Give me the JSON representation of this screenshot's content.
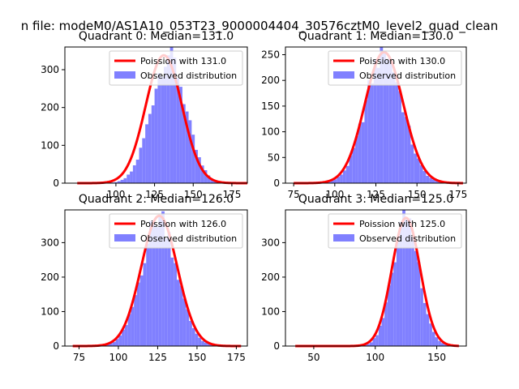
{
  "suptitle": "n file: modeM0/AS1A10_053T23_9000004404_30576cztM0_level2_quad_clean",
  "colors": {
    "curve": "#ff0000",
    "hist": "#8080ff",
    "axis": "#000000",
    "legend_border": "#cccccc"
  },
  "chart_data": [
    {
      "type": "bar",
      "title": "Quadrant 0: Median=131.0",
      "median": 131.0,
      "xlim": [
        67,
        185
      ],
      "ylim": [
        0,
        360
      ],
      "xticks": [
        100,
        125,
        150,
        175
      ],
      "yticks": [
        0,
        100,
        200,
        300
      ],
      "legend": [
        "Poission with 131.0",
        "Observed distribution"
      ],
      "legend_loc": "upper right",
      "hist": {
        "start": 75,
        "end": 185,
        "nbins": 55,
        "peak": 338,
        "center": 134,
        "sigma": 11.0
      }
    },
    {
      "type": "bar",
      "title": "Quadrant 1: Median=130.0",
      "median": 130.0,
      "xlim": [
        70,
        180
      ],
      "ylim": [
        0,
        265
      ],
      "xticks": [
        75,
        100,
        125,
        150,
        175
      ],
      "yticks": [
        0,
        50,
        100,
        150,
        200,
        250
      ],
      "legend": [
        "Poission with 130.0",
        "Observed distribution"
      ],
      "legend_loc": "upper right",
      "hist": {
        "start": 75,
        "end": 178,
        "nbins": 55,
        "peak": 255,
        "center": 130,
        "sigma": 11.2
      }
    },
    {
      "type": "bar",
      "title": "Quadrant 2: Median=126.0",
      "median": 126.0,
      "xlim": [
        66,
        182
      ],
      "ylim": [
        0,
        395
      ],
      "xticks": [
        75,
        100,
        125,
        150,
        175
      ],
      "yticks": [
        0,
        100,
        200,
        300
      ],
      "legend": [
        "Poission with 126.0",
        "Observed distribution"
      ],
      "legend_loc": "upper right",
      "hist": {
        "start": 71,
        "end": 178,
        "nbins": 55,
        "peak": 378,
        "center": 126,
        "sigma": 11.0
      }
    },
    {
      "type": "bar",
      "title": "Quadrant 3: Median=125.0",
      "median": 125.0,
      "xlim": [
        27,
        174
      ],
      "ylim": [
        0,
        395
      ],
      "xticks": [
        50,
        100,
        150
      ],
      "yticks": [
        0,
        100,
        200,
        300
      ],
      "legend": [
        "Poission with 125.0",
        "Observed distribution"
      ],
      "legend_loc": "upper right",
      "hist": {
        "start": 35,
        "end": 168,
        "nbins": 55,
        "peak": 372,
        "center": 125,
        "sigma": 10.8
      }
    }
  ]
}
